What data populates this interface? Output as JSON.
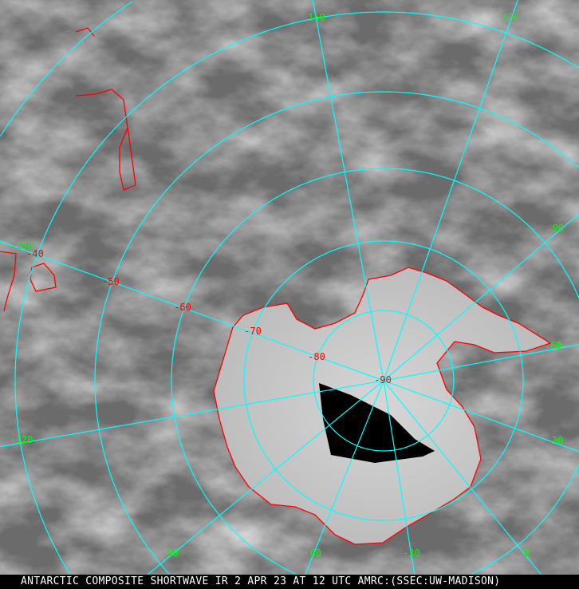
{
  "caption": "ANTARCTIC COMPOSITE SHORTWAVE IR 2 APR 23 AT 12 UTC AMRC:(SSEC:UW-MADISON)",
  "colors": {
    "grid": "#00ffff",
    "coastline": "#ff0000",
    "longitude_labels": "#00ff00",
    "latitude_labels": "#ff0000",
    "background": "#6a6a6a"
  },
  "longitude_labels": [
    "150",
    "120",
    "90",
    "60",
    "30",
    "0",
    "-30",
    "-60",
    "-90",
    "-120",
    "-150"
  ],
  "latitude_labels": [
    "-40",
    "-50",
    "-60",
    "-70",
    "-80",
    "-90"
  ]
}
